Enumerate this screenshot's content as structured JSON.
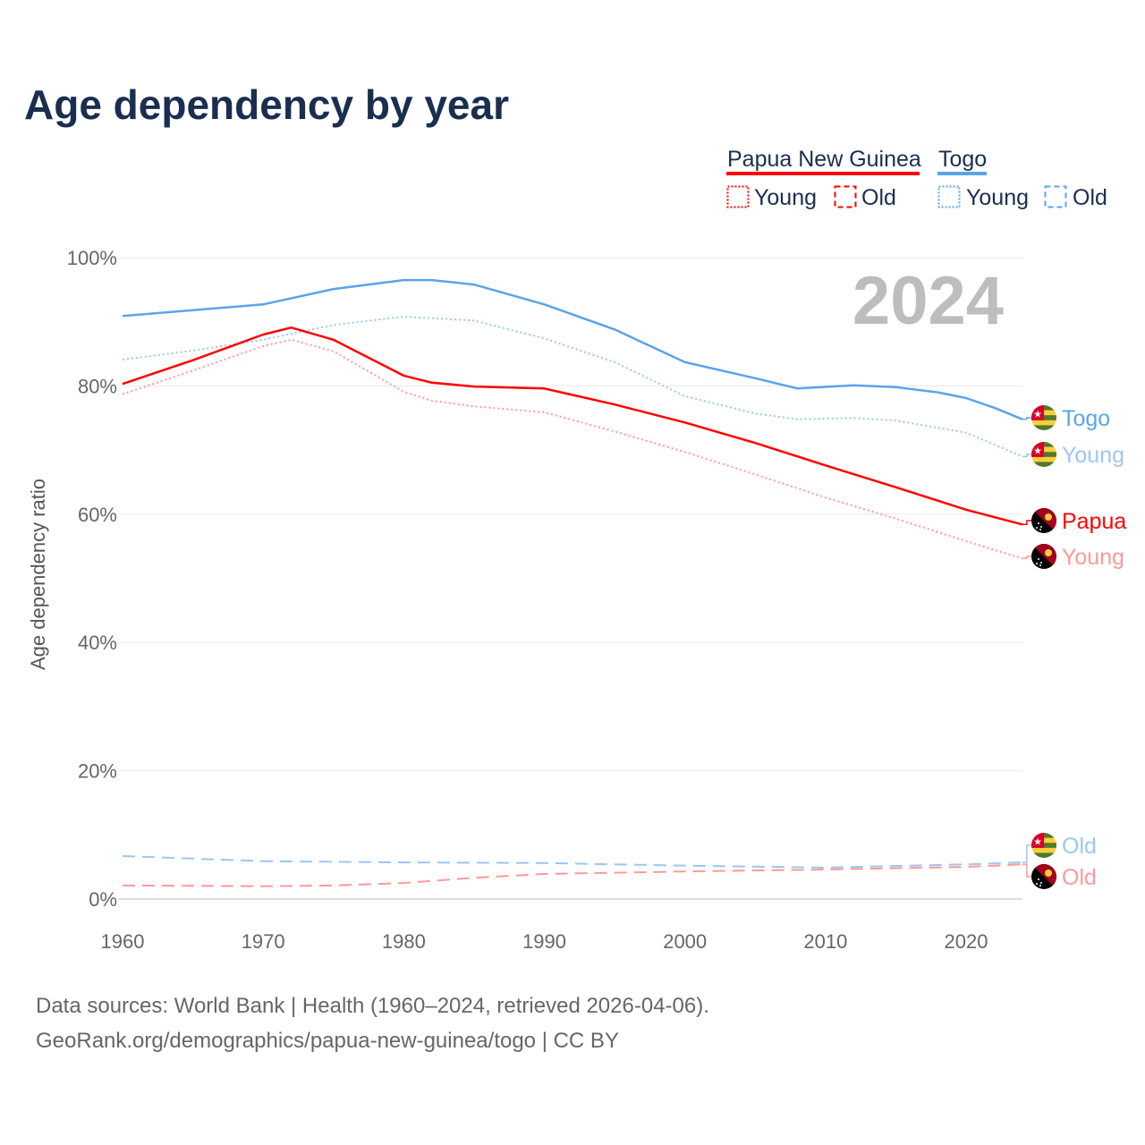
{
  "chart_data": {
    "type": "line",
    "title": "Age dependency by year",
    "xlabel": "",
    "ylabel": "Age dependency ratio",
    "xlim": [
      1960,
      2024
    ],
    "ylim": [
      0,
      100
    ],
    "x_ticks": [
      "1960",
      "1970",
      "1980",
      "1990",
      "2000",
      "2010",
      "2020"
    ],
    "y_ticks": [
      "0%",
      "20%",
      "40%",
      "60%",
      "80%",
      "100%"
    ],
    "grid": true,
    "current_year": "2024",
    "legend": {
      "placement": "top-right",
      "countries": [
        "Papua New Guinea",
        "Togo"
      ],
      "types": [
        "Young",
        "Old"
      ]
    },
    "series": [
      {
        "name": "Togo",
        "label": "Togo",
        "color": "#5ba4e8",
        "style": "solid",
        "flag": "togo-flag",
        "x": [
          1960,
          1965,
          1970,
          1975,
          1980,
          1982,
          1985,
          1990,
          1995,
          2000,
          2005,
          2008,
          2012,
          2015,
          2018,
          2020,
          2022,
          2024
        ],
        "values": [
          90.9,
          91.8,
          92.7,
          95.1,
          96.5,
          96.5,
          95.8,
          92.7,
          88.8,
          83.7,
          81.2,
          79.6,
          80.1,
          79.8,
          79.0,
          78.1,
          76.6,
          74.8
        ]
      },
      {
        "name": "Togo Young",
        "label": "Young",
        "color": "#9cc6f0",
        "style": "dotted",
        "flag": "togo-flag",
        "x": [
          1960,
          1965,
          1970,
          1975,
          1980,
          1985,
          1990,
          1995,
          2000,
          2005,
          2008,
          2012,
          2015,
          2020,
          2024
        ],
        "values": [
          84.1,
          85.5,
          87.2,
          89.5,
          90.8,
          90.2,
          87.4,
          83.7,
          78.4,
          75.7,
          74.8,
          75.0,
          74.6,
          72.7,
          69.0
        ]
      },
      {
        "name": "Togo Old",
        "label": "Old",
        "color": "#9cc6f0",
        "style": "dashed",
        "flag": "togo-flag",
        "x": [
          1960,
          1970,
          1980,
          1990,
          2000,
          2010,
          2020,
          2024
        ],
        "values": [
          6.7,
          5.9,
          5.7,
          5.6,
          5.2,
          4.9,
          5.4,
          5.7
        ]
      },
      {
        "name": "Papua New Guinea",
        "label": "Papua",
        "color": "#ff0000",
        "style": "solid",
        "flag": "png-flag",
        "x": [
          1960,
          1965,
          1970,
          1972,
          1975,
          1980,
          1982,
          1985,
          1990,
          1995,
          2000,
          2005,
          2010,
          2015,
          2020,
          2024
        ],
        "values": [
          80.3,
          84.0,
          88.0,
          89.1,
          87.2,
          81.6,
          80.5,
          79.9,
          79.6,
          77.1,
          74.3,
          71.1,
          67.6,
          64.2,
          60.7,
          58.4
        ]
      },
      {
        "name": "Papua New Guinea Young",
        "label": "Young",
        "color": "#ff9999",
        "style": "dotted",
        "flag": "png-flag",
        "x": [
          1960,
          1965,
          1970,
          1972,
          1975,
          1980,
          1982,
          1985,
          1990,
          1995,
          2000,
          2005,
          2010,
          2015,
          2020,
          2024
        ],
        "values": [
          78.7,
          82.4,
          86.2,
          87.2,
          85.4,
          79.1,
          77.7,
          76.8,
          75.9,
          72.9,
          69.7,
          66.2,
          62.6,
          59.3,
          55.8,
          53.1
        ]
      },
      {
        "name": "Papua New Guinea Old",
        "label": "Old",
        "color": "#ff9999",
        "style": "dashed",
        "flag": "png-flag",
        "x": [
          1960,
          1970,
          1975,
          1980,
          1985,
          1990,
          2000,
          2010,
          2020,
          2024
        ],
        "values": [
          2.1,
          2.0,
          2.1,
          2.5,
          3.3,
          3.9,
          4.3,
          4.6,
          5.0,
          5.4
        ]
      }
    ],
    "source_lines": [
      "Data sources: World Bank | Health (1960–2024, retrieved 2026-04-06).",
      "GeoRank.org/demographics/papua-new-guinea/togo | CC BY"
    ]
  }
}
